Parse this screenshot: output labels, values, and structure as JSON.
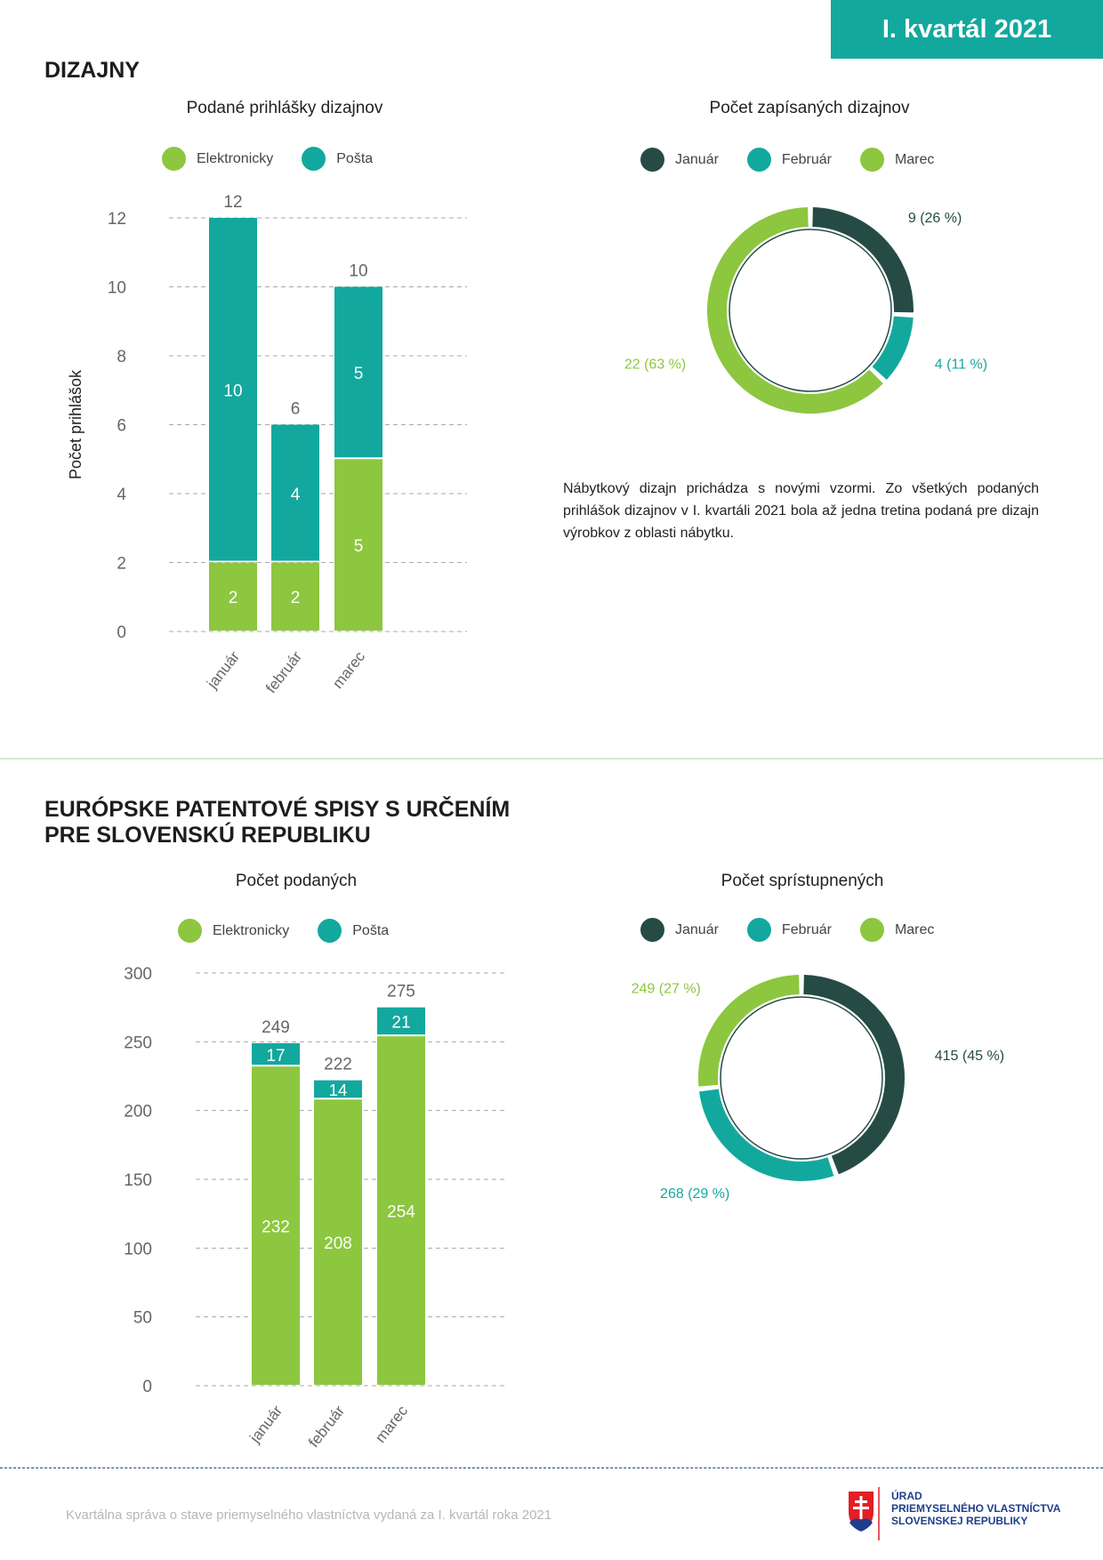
{
  "header": {
    "badge": "I. kvartál 2021"
  },
  "colors": {
    "elektronicky": "#8dc63f",
    "posta": "#13a89e",
    "januar": "#264b45",
    "februar": "#13a89e",
    "marec": "#8dc63f"
  },
  "section1": {
    "title": "DIZAJNY",
    "paragraph": "Nábytkový dizajn prichádza s novými vzormi. Zo všetkých podaných prihlášok dizajnov v I. kvartáli 2021 bola až jedna tretina podaná pre dizajn výrobkov z oblasti nábytku."
  },
  "section2": {
    "title_line1": "EURÓPSKE PATENTOVÉ SPISY S URČENÍM",
    "title_line2": "PRE SLOVENSKÚ REPUBLIKU"
  },
  "chart_data": [
    {
      "type": "bar",
      "stacked": true,
      "title": "Podané prihlášky dizajnov",
      "ylabel": "Počet prihlášok",
      "categories": [
        "január",
        "február",
        "marec"
      ],
      "series": [
        {
          "name": "Elektronicky",
          "values": [
            2,
            2,
            5
          ]
        },
        {
          "name": "Pošta",
          "values": [
            10,
            4,
            5
          ]
        }
      ],
      "totals": [
        12,
        6,
        10
      ],
      "yticks": [
        0,
        2,
        4,
        6,
        8,
        10,
        12
      ],
      "ylim": [
        0,
        12
      ]
    },
    {
      "type": "pie",
      "donut": true,
      "title": "Počet zapísaných dizajnov",
      "labels": [
        "Január",
        "Február",
        "Marec"
      ],
      "values": [
        9,
        4,
        22
      ],
      "value_labels": [
        "9 (26 %)",
        "4 (11 %)",
        "22 (63 %)"
      ]
    },
    {
      "type": "bar",
      "stacked": true,
      "title": "Počet podaných",
      "ylabel": "",
      "categories": [
        "január",
        "február",
        "marec"
      ],
      "series": [
        {
          "name": "Elektronicky",
          "values": [
            232,
            208,
            254
          ]
        },
        {
          "name": "Pošta",
          "values": [
            17,
            14,
            21
          ]
        }
      ],
      "totals": [
        249,
        222,
        275
      ],
      "yticks": [
        0,
        50,
        100,
        150,
        200,
        250,
        300
      ],
      "ylim": [
        0,
        300
      ]
    },
    {
      "type": "pie",
      "donut": true,
      "title": "Počet sprístupnených",
      "labels": [
        "Január",
        "Február",
        "Marec"
      ],
      "values": [
        415,
        268,
        249
      ],
      "value_labels": [
        "415 (45 %)",
        "268 (29 %)",
        "249 (27 %)"
      ]
    }
  ],
  "footer": {
    "text": "Kvartálna správa o stave priemyselného vlastníctva vydaná za I. kvartál roka 2021",
    "logo_line1": "ÚRAD",
    "logo_line2": "PRIEMYSELNÉHO VLASTNÍCTVA",
    "logo_line3": "SLOVENSKEJ REPUBLIKY"
  }
}
